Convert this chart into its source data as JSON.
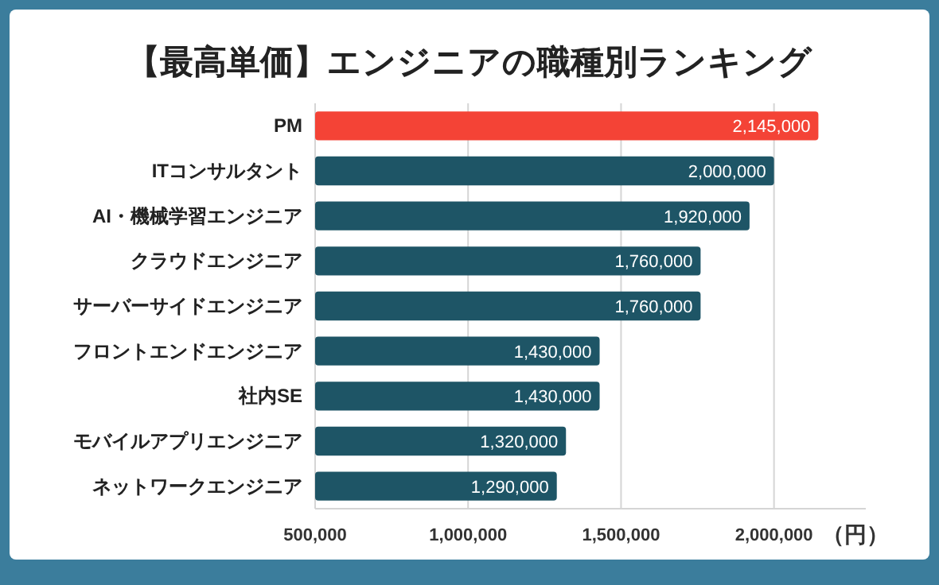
{
  "chart_data": {
    "type": "bar",
    "orientation": "horizontal",
    "title": "【最高単価】エンジニアの職種別ランキング",
    "xlabel": "（円）",
    "categories": [
      "PM",
      "ITコンサルタント",
      "AI・機械学習エンジニア",
      "クラウドエンジニア",
      "サーバーサイドエンジニア",
      "フロントエンドエンジニア",
      "社内SE",
      "モバイルアプリエンジニア",
      "ネットワークエンジニア"
    ],
    "values": [
      2145000,
      2000000,
      1920000,
      1760000,
      1760000,
      1430000,
      1430000,
      1320000,
      1290000
    ],
    "colors": [
      "#f44336",
      "#1e5566",
      "#1e5566",
      "#1e5566",
      "#1e5566",
      "#1e5566",
      "#1e5566",
      "#1e5566",
      "#1e5566"
    ],
    "value_labels": [
      "2,145,000",
      "2,000,000",
      "1,920,000",
      "1,760,000",
      "1,760,000",
      "1,430,000",
      "1,430,000",
      "1,320,000",
      "1,290,000"
    ],
    "xticks": [
      {
        "value": 500000,
        "label": "500,000"
      },
      {
        "value": 1000000,
        "label": "1,000,000"
      },
      {
        "value": 1500000,
        "label": "1,500,000"
      },
      {
        "value": 2000000,
        "label": "2,000,000"
      }
    ],
    "xlim": [
      500000,
      2300000
    ],
    "grid": "x"
  }
}
